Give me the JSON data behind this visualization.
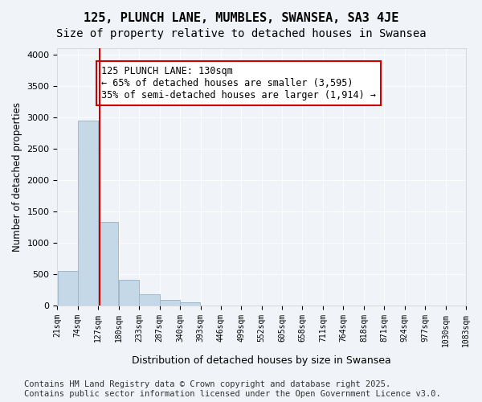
{
  "title1": "125, PLUNCH LANE, MUMBLES, SWANSEA, SA3 4JE",
  "title2": "Size of property relative to detached houses in Swansea",
  "xlabel": "Distribution of detached houses by size in Swansea",
  "ylabel": "Number of detached properties",
  "bar_edges": [
    21,
    74,
    127,
    180,
    233,
    287,
    340,
    393,
    446,
    499,
    552,
    605,
    658,
    711,
    764,
    818,
    871,
    924,
    977,
    1030,
    1083
  ],
  "bar_heights": [
    550,
    2950,
    1330,
    410,
    175,
    90,
    55,
    0,
    0,
    0,
    0,
    0,
    0,
    0,
    0,
    0,
    0,
    0,
    0,
    0
  ],
  "bar_color": "#c5d8e8",
  "bar_edgecolor": "#a0b8cc",
  "property_size": 130,
  "property_line_color": "#cc0000",
  "annotation_text": "125 PLUNCH LANE: 130sqm\n← 65% of detached houses are smaller (3,595)\n35% of semi-detached houses are larger (1,914) →",
  "annotation_box_color": "#ffffff",
  "annotation_box_edgecolor": "#cc0000",
  "ylim": [
    0,
    4100
  ],
  "yticks": [
    0,
    500,
    1000,
    1500,
    2000,
    2500,
    3000,
    3500,
    4000
  ],
  "background_color": "#f0f4f8",
  "footer_text": "Contains HM Land Registry data © Crown copyright and database right 2025.\nContains public sector information licensed under the Open Government Licence v3.0.",
  "title_fontsize": 11,
  "subtitle_fontsize": 10,
  "annotation_fontsize": 8.5,
  "footer_fontsize": 7.5
}
